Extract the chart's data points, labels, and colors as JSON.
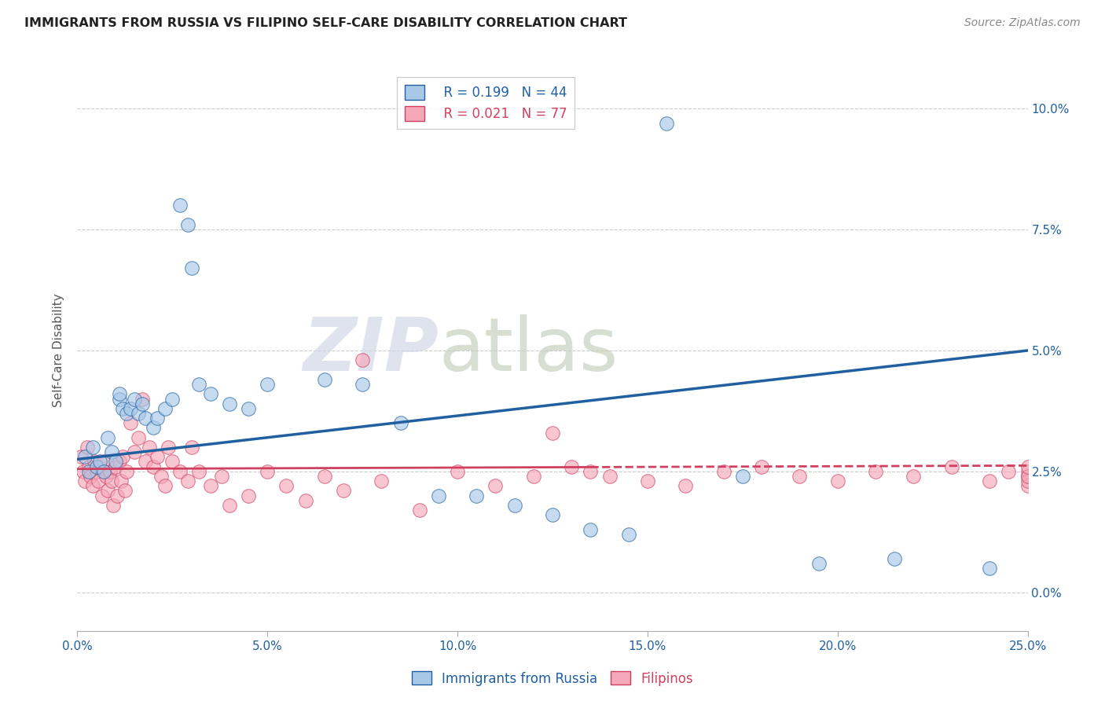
{
  "title": "IMMIGRANTS FROM RUSSIA VS FILIPINO SELF-CARE DISABILITY CORRELATION CHART",
  "source": "Source: ZipAtlas.com",
  "xlabel_vals": [
    0.0,
    5.0,
    10.0,
    15.0,
    20.0,
    25.0
  ],
  "ylabel": "Self-Care Disability",
  "ylabel_vals": [
    0.0,
    2.5,
    5.0,
    7.5,
    10.0
  ],
  "xmin": 0.0,
  "xmax": 25.0,
  "ymin": -0.8,
  "ymax": 10.8,
  "legend_r1": "R = 0.199",
  "legend_n1": "N = 44",
  "legend_r2": "R = 0.021",
  "legend_n2": "N = 77",
  "blue_color": "#a8c8e8",
  "pink_color": "#f4a8b8",
  "blue_line_color": "#2060a0",
  "pink_line_color": "#d04060",
  "watermark_zip": "ZIP",
  "watermark_atlas": "atlas",
  "blue_x": [
    0.2,
    0.3,
    0.4,
    0.5,
    0.6,
    0.7,
    0.8,
    0.9,
    1.0,
    1.1,
    1.1,
    1.2,
    1.3,
    1.4,
    1.5,
    1.6,
    1.7,
    1.8,
    2.0,
    2.1,
    2.3,
    2.5,
    2.7,
    2.9,
    3.0,
    3.2,
    3.5,
    4.0,
    4.5,
    5.0,
    6.5,
    7.5,
    8.5,
    9.5,
    10.5,
    11.5,
    12.5,
    13.5,
    14.5,
    15.5,
    17.5,
    19.5,
    21.5,
    24.0
  ],
  "blue_y": [
    2.8,
    2.5,
    3.0,
    2.6,
    2.7,
    2.5,
    3.2,
    2.9,
    2.7,
    4.0,
    4.1,
    3.8,
    3.7,
    3.8,
    4.0,
    3.7,
    3.9,
    3.6,
    3.4,
    3.6,
    3.8,
    4.0,
    8.0,
    7.6,
    6.7,
    4.3,
    4.1,
    3.9,
    3.8,
    4.3,
    4.4,
    4.3,
    3.5,
    2.0,
    2.0,
    1.8,
    1.6,
    1.3,
    1.2,
    9.7,
    2.4,
    0.6,
    0.7,
    0.5
  ],
  "pink_x": [
    0.1,
    0.15,
    0.2,
    0.25,
    0.3,
    0.35,
    0.4,
    0.45,
    0.5,
    0.55,
    0.6,
    0.65,
    0.7,
    0.75,
    0.8,
    0.85,
    0.9,
    0.95,
    1.0,
    1.05,
    1.1,
    1.15,
    1.2,
    1.25,
    1.3,
    1.4,
    1.5,
    1.6,
    1.7,
    1.8,
    1.9,
    2.0,
    2.1,
    2.2,
    2.3,
    2.4,
    2.5,
    2.7,
    2.9,
    3.0,
    3.2,
    3.5,
    3.8,
    4.0,
    4.5,
    5.0,
    5.5,
    6.0,
    6.5,
    7.0,
    7.5,
    8.0,
    9.0,
    10.0,
    11.0,
    12.0,
    12.5,
    13.0,
    13.5,
    14.0,
    15.0,
    16.0,
    17.0,
    18.0,
    19.0,
    20.0,
    21.0,
    22.0,
    23.0,
    24.0,
    24.5,
    25.0,
    25.0,
    25.0,
    25.0,
    25.0,
    25.0
  ],
  "pink_y": [
    2.8,
    2.5,
    2.3,
    3.0,
    2.6,
    2.4,
    2.2,
    2.7,
    2.5,
    2.3,
    2.6,
    2.0,
    2.7,
    2.4,
    2.1,
    2.5,
    2.3,
    1.8,
    2.6,
    2.0,
    2.7,
    2.3,
    2.8,
    2.1,
    2.5,
    3.5,
    2.9,
    3.2,
    4.0,
    2.7,
    3.0,
    2.6,
    2.8,
    2.4,
    2.2,
    3.0,
    2.7,
    2.5,
    2.3,
    3.0,
    2.5,
    2.2,
    2.4,
    1.8,
    2.0,
    2.5,
    2.2,
    1.9,
    2.4,
    2.1,
    4.8,
    2.3,
    1.7,
    2.5,
    2.2,
    2.4,
    3.3,
    2.6,
    2.5,
    2.4,
    2.3,
    2.2,
    2.5,
    2.6,
    2.4,
    2.3,
    2.5,
    2.4,
    2.6,
    2.3,
    2.5,
    2.4,
    2.2,
    2.5,
    2.3,
    2.4,
    2.6
  ],
  "pink_solid_end_x": 13.5,
  "blue_reg_x0": 0.0,
  "blue_reg_y0": 2.75,
  "blue_reg_x1": 25.0,
  "blue_reg_y1": 5.0,
  "pink_reg_x0": 0.0,
  "pink_reg_y0": 2.55,
  "pink_reg_x1": 25.0,
  "pink_reg_y1": 2.62
}
